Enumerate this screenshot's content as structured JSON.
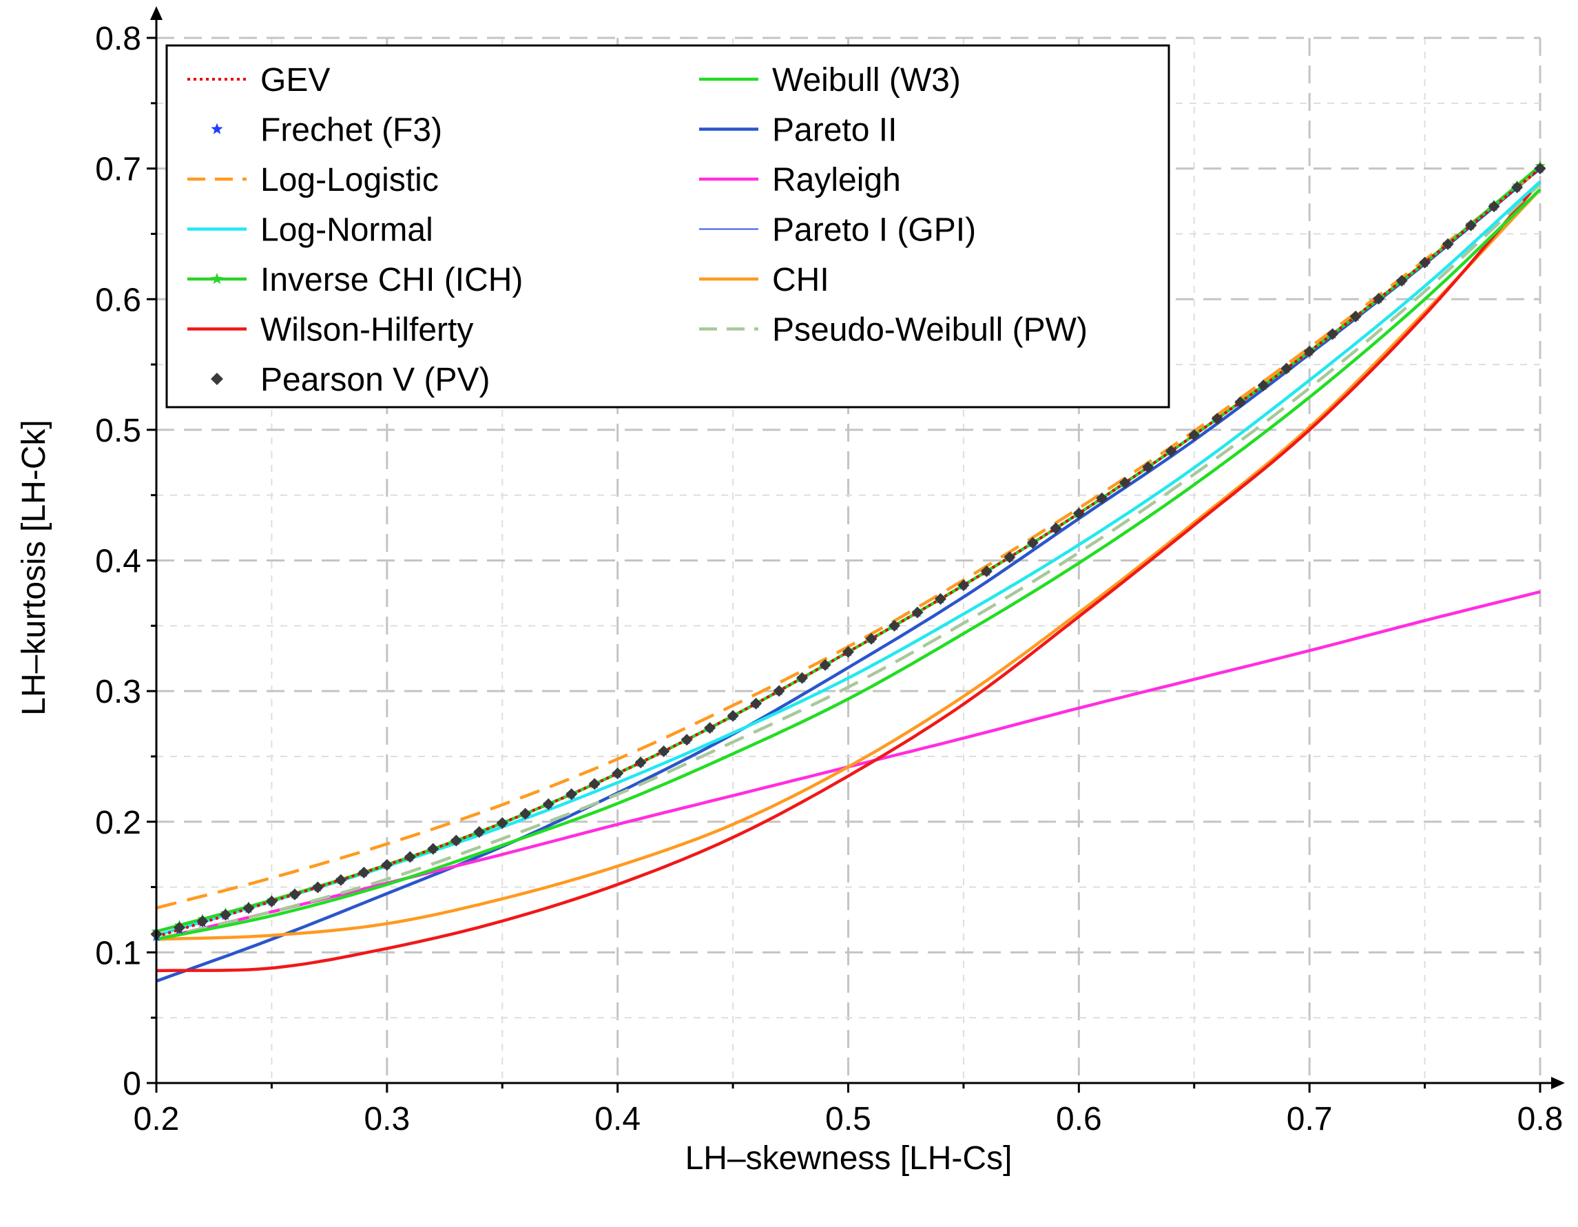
{
  "chart_data": {
    "type": "line",
    "title": "",
    "xlabel": "LH–skewness [LH-Cs]",
    "ylabel": "LH–kurtosis [LH-Ck]",
    "xlim": [
      0.2,
      0.8
    ],
    "ylim": [
      0,
      0.8
    ],
    "x_major_ticks": [
      0.2,
      0.3,
      0.4,
      0.5,
      0.6,
      0.7,
      0.8
    ],
    "x_tick_labels": [
      "0.2",
      "0.3",
      "0.4",
      "0.5",
      "0.6",
      "0.7",
      "0.8"
    ],
    "y_major_ticks": [
      0,
      0.1,
      0.2,
      0.3,
      0.4,
      0.5,
      0.6,
      0.7,
      0.8
    ],
    "y_tick_labels": [
      "0",
      "0.1",
      "0.2",
      "0.3",
      "0.4",
      "0.5",
      "0.6",
      "0.7",
      "0.8"
    ],
    "grid": true,
    "legend_position": "top-left",
    "x": [
      0.2,
      0.25,
      0.3,
      0.35,
      0.4,
      0.45,
      0.5,
      0.55,
      0.6,
      0.65,
      0.7,
      0.75,
      0.8
    ],
    "series": [
      {
        "name": "GEV",
        "color": "#e8000b",
        "style": "dotted",
        "marker": "none",
        "values": [
          0.112,
          0.139,
          0.167,
          0.199,
          0.237,
          0.281,
          0.33,
          0.381,
          0.436,
          0.496,
          0.56,
          0.628,
          0.7
        ]
      },
      {
        "name": "Frechet (F3)",
        "color": "#1f3fff",
        "style": "none",
        "marker": "star",
        "values": [
          0.112,
          0.139,
          0.167,
          0.199,
          0.237,
          0.281,
          0.33,
          0.381,
          0.436,
          0.496,
          0.56,
          0.628,
          0.7
        ]
      },
      {
        "name": "Log-Logistic",
        "color": "#ff9a1f",
        "style": "dashed",
        "marker": "none",
        "values": [
          0.134,
          0.157,
          0.183,
          0.213,
          0.248,
          0.289,
          0.334,
          0.385,
          0.44,
          0.499,
          0.563,
          0.63,
          0.7
        ]
      },
      {
        "name": "Log-Normal",
        "color": "#22e8f0",
        "style": "solid",
        "marker": "none",
        "values": [
          0.113,
          0.139,
          0.166,
          0.196,
          0.23,
          0.268,
          0.31,
          0.359,
          0.412,
          0.471,
          0.538,
          0.61,
          0.69
        ]
      },
      {
        "name": "Inverse CHI (ICH)",
        "color": "#2ad42a",
        "style": "solid",
        "marker": "star",
        "values": [
          0.116,
          0.14,
          0.167,
          0.199,
          0.237,
          0.281,
          0.33,
          0.381,
          0.436,
          0.496,
          0.56,
          0.628,
          0.702
        ]
      },
      {
        "name": "Wilson-Hilferty",
        "color": "#f01818",
        "style": "solid",
        "marker": "none",
        "values": [
          0.086,
          0.088,
          0.103,
          0.124,
          0.152,
          0.188,
          0.235,
          0.29,
          0.357,
          0.427,
          0.5,
          0.588,
          0.69
        ]
      },
      {
        "name": "Pearson V (PV)",
        "color": "#3a3a3a",
        "style": "none",
        "marker": "diamond",
        "values": [
          0.114,
          0.139,
          0.167,
          0.199,
          0.237,
          0.281,
          0.33,
          0.381,
          0.436,
          0.496,
          0.56,
          0.628,
          0.7
        ]
      },
      {
        "name": "Weibull (W3)",
        "color": "#22dd22",
        "style": "solid",
        "marker": "none",
        "values": [
          0.11,
          0.128,
          0.152,
          0.182,
          0.214,
          0.252,
          0.294,
          0.344,
          0.398,
          0.458,
          0.525,
          0.6,
          0.684
        ]
      },
      {
        "name": "Pareto II",
        "color": "#2a55cc",
        "style": "solid",
        "marker": "none",
        "values": [
          0.078,
          0.11,
          0.145,
          0.181,
          0.222,
          0.267,
          0.318,
          0.372,
          0.432,
          0.492,
          0.558,
          0.627,
          0.7
        ]
      },
      {
        "name": "Rayleigh",
        "color": "#ff2ee0",
        "style": "solid",
        "marker": "none",
        "values": [
          0.11,
          0.131,
          0.153,
          0.175,
          0.198,
          0.22,
          0.242,
          0.264,
          0.287,
          0.309,
          0.331,
          0.354,
          0.376
        ]
      },
      {
        "name": "Pareto I (GPI)",
        "color": "#3355ee",
        "style": "thin",
        "marker": "none",
        "values": [
          0.078,
          0.11,
          0.145,
          0.181,
          0.222,
          0.267,
          0.318,
          0.372,
          0.432,
          0.492,
          0.558,
          0.627,
          0.7
        ]
      },
      {
        "name": "CHI",
        "color": "#ff9a1f",
        "style": "solid",
        "marker": "none",
        "values": [
          0.11,
          0.113,
          0.122,
          0.141,
          0.166,
          0.198,
          0.242,
          0.296,
          0.36,
          0.429,
          0.502,
          0.59,
          0.684
        ]
      },
      {
        "name": "Pseudo-Weibull (PW)",
        "color": "#a8c89a",
        "style": "dashed",
        "marker": "none",
        "values": [
          0.11,
          0.131,
          0.156,
          0.187,
          0.221,
          0.261,
          0.303,
          0.352,
          0.406,
          0.466,
          0.532,
          0.606,
          0.688
        ]
      }
    ]
  }
}
